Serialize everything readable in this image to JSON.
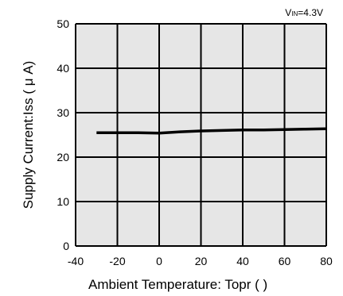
{
  "chart_data": {
    "type": "line",
    "annotation": {
      "main": "V",
      "sub": "IN",
      "rest": "=4.3V"
    },
    "xlabel": "Ambient Temperature: Topr (   )",
    "ylabel": "Supply Current:Iss ( μ A)",
    "xlim": [
      -40,
      80
    ],
    "ylim": [
      0,
      50
    ],
    "xticks": [
      "-40",
      "-20",
      "0",
      "20",
      "40",
      "60",
      "80"
    ],
    "yticks": [
      "0",
      "10",
      "20",
      "30",
      "40",
      "50"
    ],
    "grid": true,
    "series": [
      {
        "x": [
          -30,
          -20,
          -10,
          0,
          10,
          20,
          30,
          40,
          50,
          60,
          70,
          80
        ],
        "values": [
          25.5,
          25.5,
          25.5,
          25.4,
          25.7,
          25.9,
          26.0,
          26.1,
          26.1,
          26.2,
          26.3,
          26.4
        ]
      }
    ],
    "colors": {
      "background": "#e6e6e6",
      "grid": "#000000",
      "line": "#000000"
    }
  }
}
